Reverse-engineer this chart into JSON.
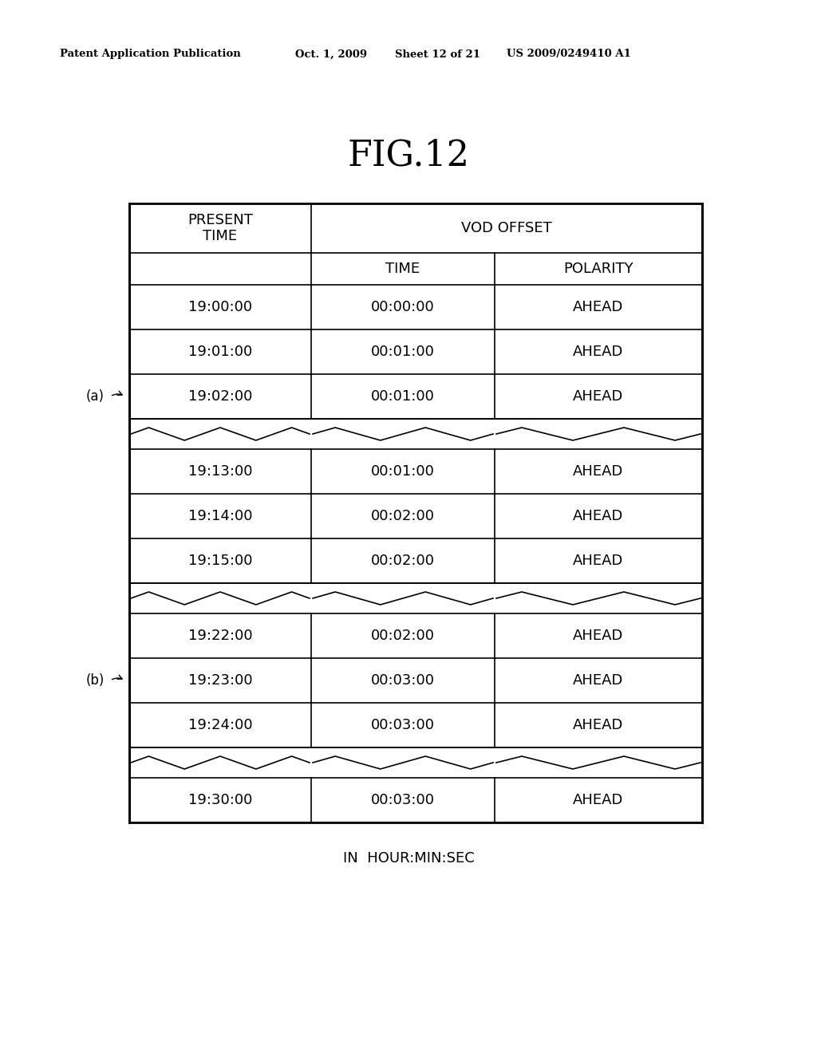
{
  "title": "FIG.12",
  "pat_left": "Patent Application Publication",
  "pat_mid1": "Oct. 1, 2009",
  "pat_mid2": "Sheet 12 of 21",
  "pat_right": "US 2009/0249410 A1",
  "footer": "IN  HOUR:MIN:SEC",
  "data_groups": [
    {
      "rows": [
        [
          "19:00:00",
          "00:00:00",
          "AHEAD"
        ],
        [
          "19:01:00",
          "00:01:00",
          "AHEAD"
        ],
        [
          "19:02:00",
          "00:01:00",
          "AHEAD"
        ]
      ]
    },
    {
      "rows": [
        [
          "19:13:00",
          "00:01:00",
          "AHEAD"
        ],
        [
          "19:14:00",
          "00:02:00",
          "AHEAD"
        ],
        [
          "19:15:00",
          "00:02:00",
          "AHEAD"
        ]
      ]
    },
    {
      "rows": [
        [
          "19:22:00",
          "00:02:00",
          "AHEAD"
        ],
        [
          "19:23:00",
          "00:03:00",
          "AHEAD"
        ],
        [
          "19:24:00",
          "00:03:00",
          "AHEAD"
        ]
      ]
    },
    {
      "rows": [
        [
          "19:30:00",
          "00:03:00",
          "AHEAD"
        ]
      ]
    }
  ],
  "label_a": "(a)",
  "label_b": "(b)",
  "label_a_group": 0,
  "label_a_row": 2,
  "label_b_group": 2,
  "label_b_row": 1,
  "bg_color": "#ffffff",
  "text_color": "#000000",
  "line_color": "#000000"
}
